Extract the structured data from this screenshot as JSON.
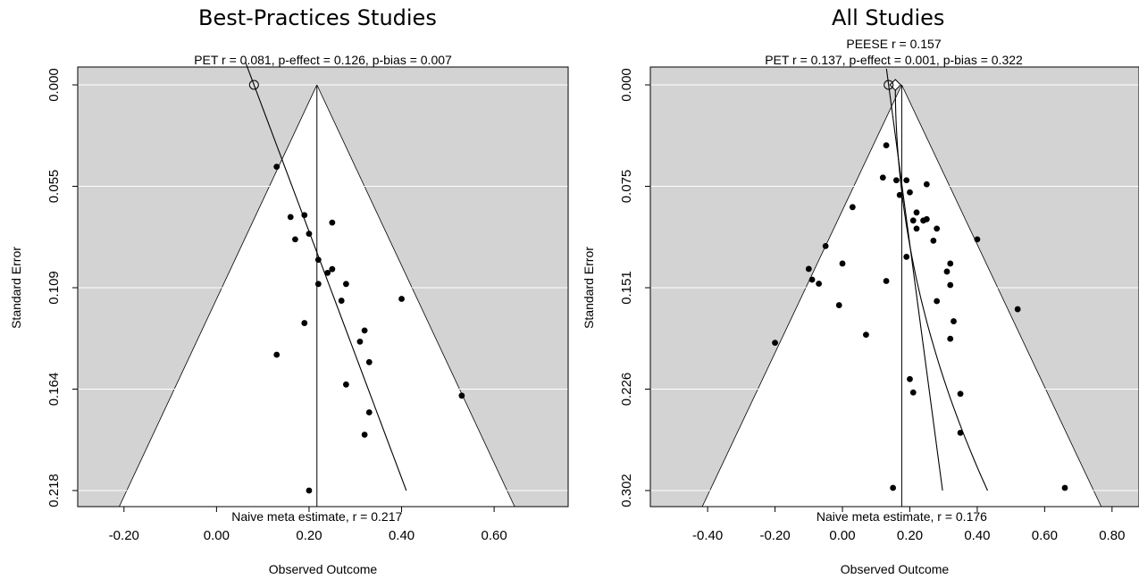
{
  "chart_data": [
    {
      "type": "scatter",
      "title": "Best-Practices Studies",
      "subtitle_lines": [
        "PET r = 0.081, p-effect = 0.126, p-bias = 0.007"
      ],
      "xlabel": "Observed Outcome",
      "ylabel": "Standard Error",
      "bottom_annotation": "Naive meta estimate, r = 0.217",
      "xlim": [
        -0.3,
        0.76
      ],
      "ylim": [
        0.218,
        0.0
      ],
      "x_ticks": [
        -0.2,
        0.0,
        0.2,
        0.4,
        0.6
      ],
      "x_tick_labels": [
        "-0.20",
        "0.00",
        "0.20",
        "0.40",
        "0.60"
      ],
      "y_ticks": [
        0.0,
        0.0545,
        0.109,
        0.1635,
        0.218
      ],
      "y_tick_labels": [
        "0.000",
        "0.055",
        "0.109",
        "0.164",
        "0.218"
      ],
      "funnel_center": 0.217,
      "pet_line": {
        "intercept": 0.081,
        "slope": 1.51
      },
      "pet_estimate": {
        "x": 0.081,
        "y": 0.0
      },
      "points": [
        {
          "x": 0.13,
          "y": 0.044
        },
        {
          "x": 0.16,
          "y": 0.071
        },
        {
          "x": 0.19,
          "y": 0.07
        },
        {
          "x": 0.25,
          "y": 0.074
        },
        {
          "x": 0.17,
          "y": 0.083
        },
        {
          "x": 0.2,
          "y": 0.08
        },
        {
          "x": 0.22,
          "y": 0.094
        },
        {
          "x": 0.25,
          "y": 0.099
        },
        {
          "x": 0.24,
          "y": 0.101
        },
        {
          "x": 0.22,
          "y": 0.107
        },
        {
          "x": 0.28,
          "y": 0.107
        },
        {
          "x": 0.27,
          "y": 0.116
        },
        {
          "x": 0.4,
          "y": 0.115
        },
        {
          "x": 0.19,
          "y": 0.128
        },
        {
          "x": 0.32,
          "y": 0.132
        },
        {
          "x": 0.31,
          "y": 0.138
        },
        {
          "x": 0.33,
          "y": 0.149
        },
        {
          "x": 0.13,
          "y": 0.145
        },
        {
          "x": 0.28,
          "y": 0.161
        },
        {
          "x": 0.53,
          "y": 0.167
        },
        {
          "x": 0.33,
          "y": 0.176
        },
        {
          "x": 0.32,
          "y": 0.188
        },
        {
          "x": 0.2,
          "y": 0.218
        }
      ]
    },
    {
      "type": "scatter",
      "title": "All Studies",
      "subtitle_lines": [
        "PEESE r = 0.157",
        "PET r = 0.137, p-effect = 0.001, p-bias = 0.322"
      ],
      "xlabel": "Observed Outcome",
      "ylabel": "Standard Error",
      "bottom_annotation": "Naive meta estimate, r = 0.176",
      "xlim": [
        -0.57,
        0.88
      ],
      "ylim": [
        0.302,
        0.0
      ],
      "x_ticks": [
        -0.4,
        -0.2,
        0.0,
        0.2,
        0.4,
        0.6,
        0.8
      ],
      "x_tick_labels": [
        "-0.40",
        "-0.20",
        "0.00",
        "0.20",
        "0.40",
        "0.60",
        "0.80"
      ],
      "y_ticks": [
        0.0,
        0.0755,
        0.151,
        0.2265,
        0.302
      ],
      "y_tick_labels": [
        "0.000",
        "0.075",
        "0.151",
        "0.226",
        "0.302"
      ],
      "funnel_center": 0.176,
      "pet_line": {
        "intercept": 0.137,
        "slope": 0.53
      },
      "peese_line": {
        "intercept": 0.157,
        "coef": 3.0
      },
      "pet_estimate": {
        "x": 0.137,
        "y": 0.0
      },
      "peese_estimate": {
        "x": 0.157,
        "y": 0.0
      },
      "points": [
        {
          "x": 0.13,
          "y": 0.045
        },
        {
          "x": 0.12,
          "y": 0.069
        },
        {
          "x": 0.16,
          "y": 0.071
        },
        {
          "x": 0.19,
          "y": 0.071
        },
        {
          "x": 0.25,
          "y": 0.074
        },
        {
          "x": 0.17,
          "y": 0.082
        },
        {
          "x": 0.2,
          "y": 0.08
        },
        {
          "x": 0.03,
          "y": 0.091
        },
        {
          "x": 0.22,
          "y": 0.095
        },
        {
          "x": 0.25,
          "y": 0.1
        },
        {
          "x": 0.24,
          "y": 0.101
        },
        {
          "x": 0.21,
          "y": 0.101
        },
        {
          "x": 0.22,
          "y": 0.107
        },
        {
          "x": 0.28,
          "y": 0.107
        },
        {
          "x": 0.27,
          "y": 0.116
        },
        {
          "x": 0.4,
          "y": 0.115
        },
        {
          "x": -0.05,
          "y": 0.12
        },
        {
          "x": 0.19,
          "y": 0.128
        },
        {
          "x": 0.0,
          "y": 0.133
        },
        {
          "x": 0.32,
          "y": 0.133
        },
        {
          "x": -0.1,
          "y": 0.137
        },
        {
          "x": 0.31,
          "y": 0.139
        },
        {
          "x": -0.09,
          "y": 0.145
        },
        {
          "x": 0.13,
          "y": 0.146
        },
        {
          "x": -0.07,
          "y": 0.148
        },
        {
          "x": 0.32,
          "y": 0.149
        },
        {
          "x": 0.28,
          "y": 0.161
        },
        {
          "x": -0.01,
          "y": 0.164
        },
        {
          "x": 0.52,
          "y": 0.167
        },
        {
          "x": 0.33,
          "y": 0.176
        },
        {
          "x": 0.07,
          "y": 0.186
        },
        {
          "x": 0.32,
          "y": 0.189
        },
        {
          "x": -0.2,
          "y": 0.192
        },
        {
          "x": 0.2,
          "y": 0.219
        },
        {
          "x": 0.21,
          "y": 0.229
        },
        {
          "x": 0.35,
          "y": 0.23
        },
        {
          "x": 0.35,
          "y": 0.259
        },
        {
          "x": 0.15,
          "y": 0.3
        },
        {
          "x": 0.66,
          "y": 0.3
        }
      ]
    }
  ]
}
